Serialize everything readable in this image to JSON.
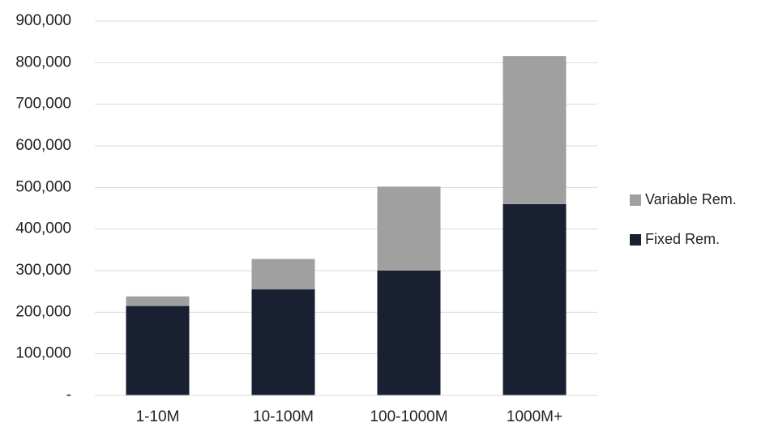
{
  "chart_data": {
    "type": "bar",
    "stacked": true,
    "categories": [
      "1-10M",
      "10-100M",
      "100-1000M",
      "1000M+"
    ],
    "series": [
      {
        "name": "Fixed Rem.",
        "values": [
          215000,
          255000,
          300000,
          460000
        ],
        "color": "#192032"
      },
      {
        "name": "Variable Rem.",
        "values": [
          23000,
          73000,
          202000,
          356000
        ],
        "color": "#a0a0a0"
      }
    ],
    "ylim": [
      0,
      900000
    ],
    "yticks": [
      0,
      100000,
      200000,
      300000,
      400000,
      500000,
      600000,
      700000,
      800000,
      900000
    ],
    "ytick_labels": [
      "-",
      "100,000",
      "200,000",
      "300,000",
      "400,000",
      "500,000",
      "600,000",
      "700,000",
      "800,000",
      "900,000"
    ],
    "legend_order": [
      "Variable Rem.",
      "Fixed Rem."
    ],
    "legend_position": "right",
    "grid": true,
    "gridline_color": "#d9d9d9",
    "title": "",
    "xlabel": "",
    "ylabel": ""
  }
}
